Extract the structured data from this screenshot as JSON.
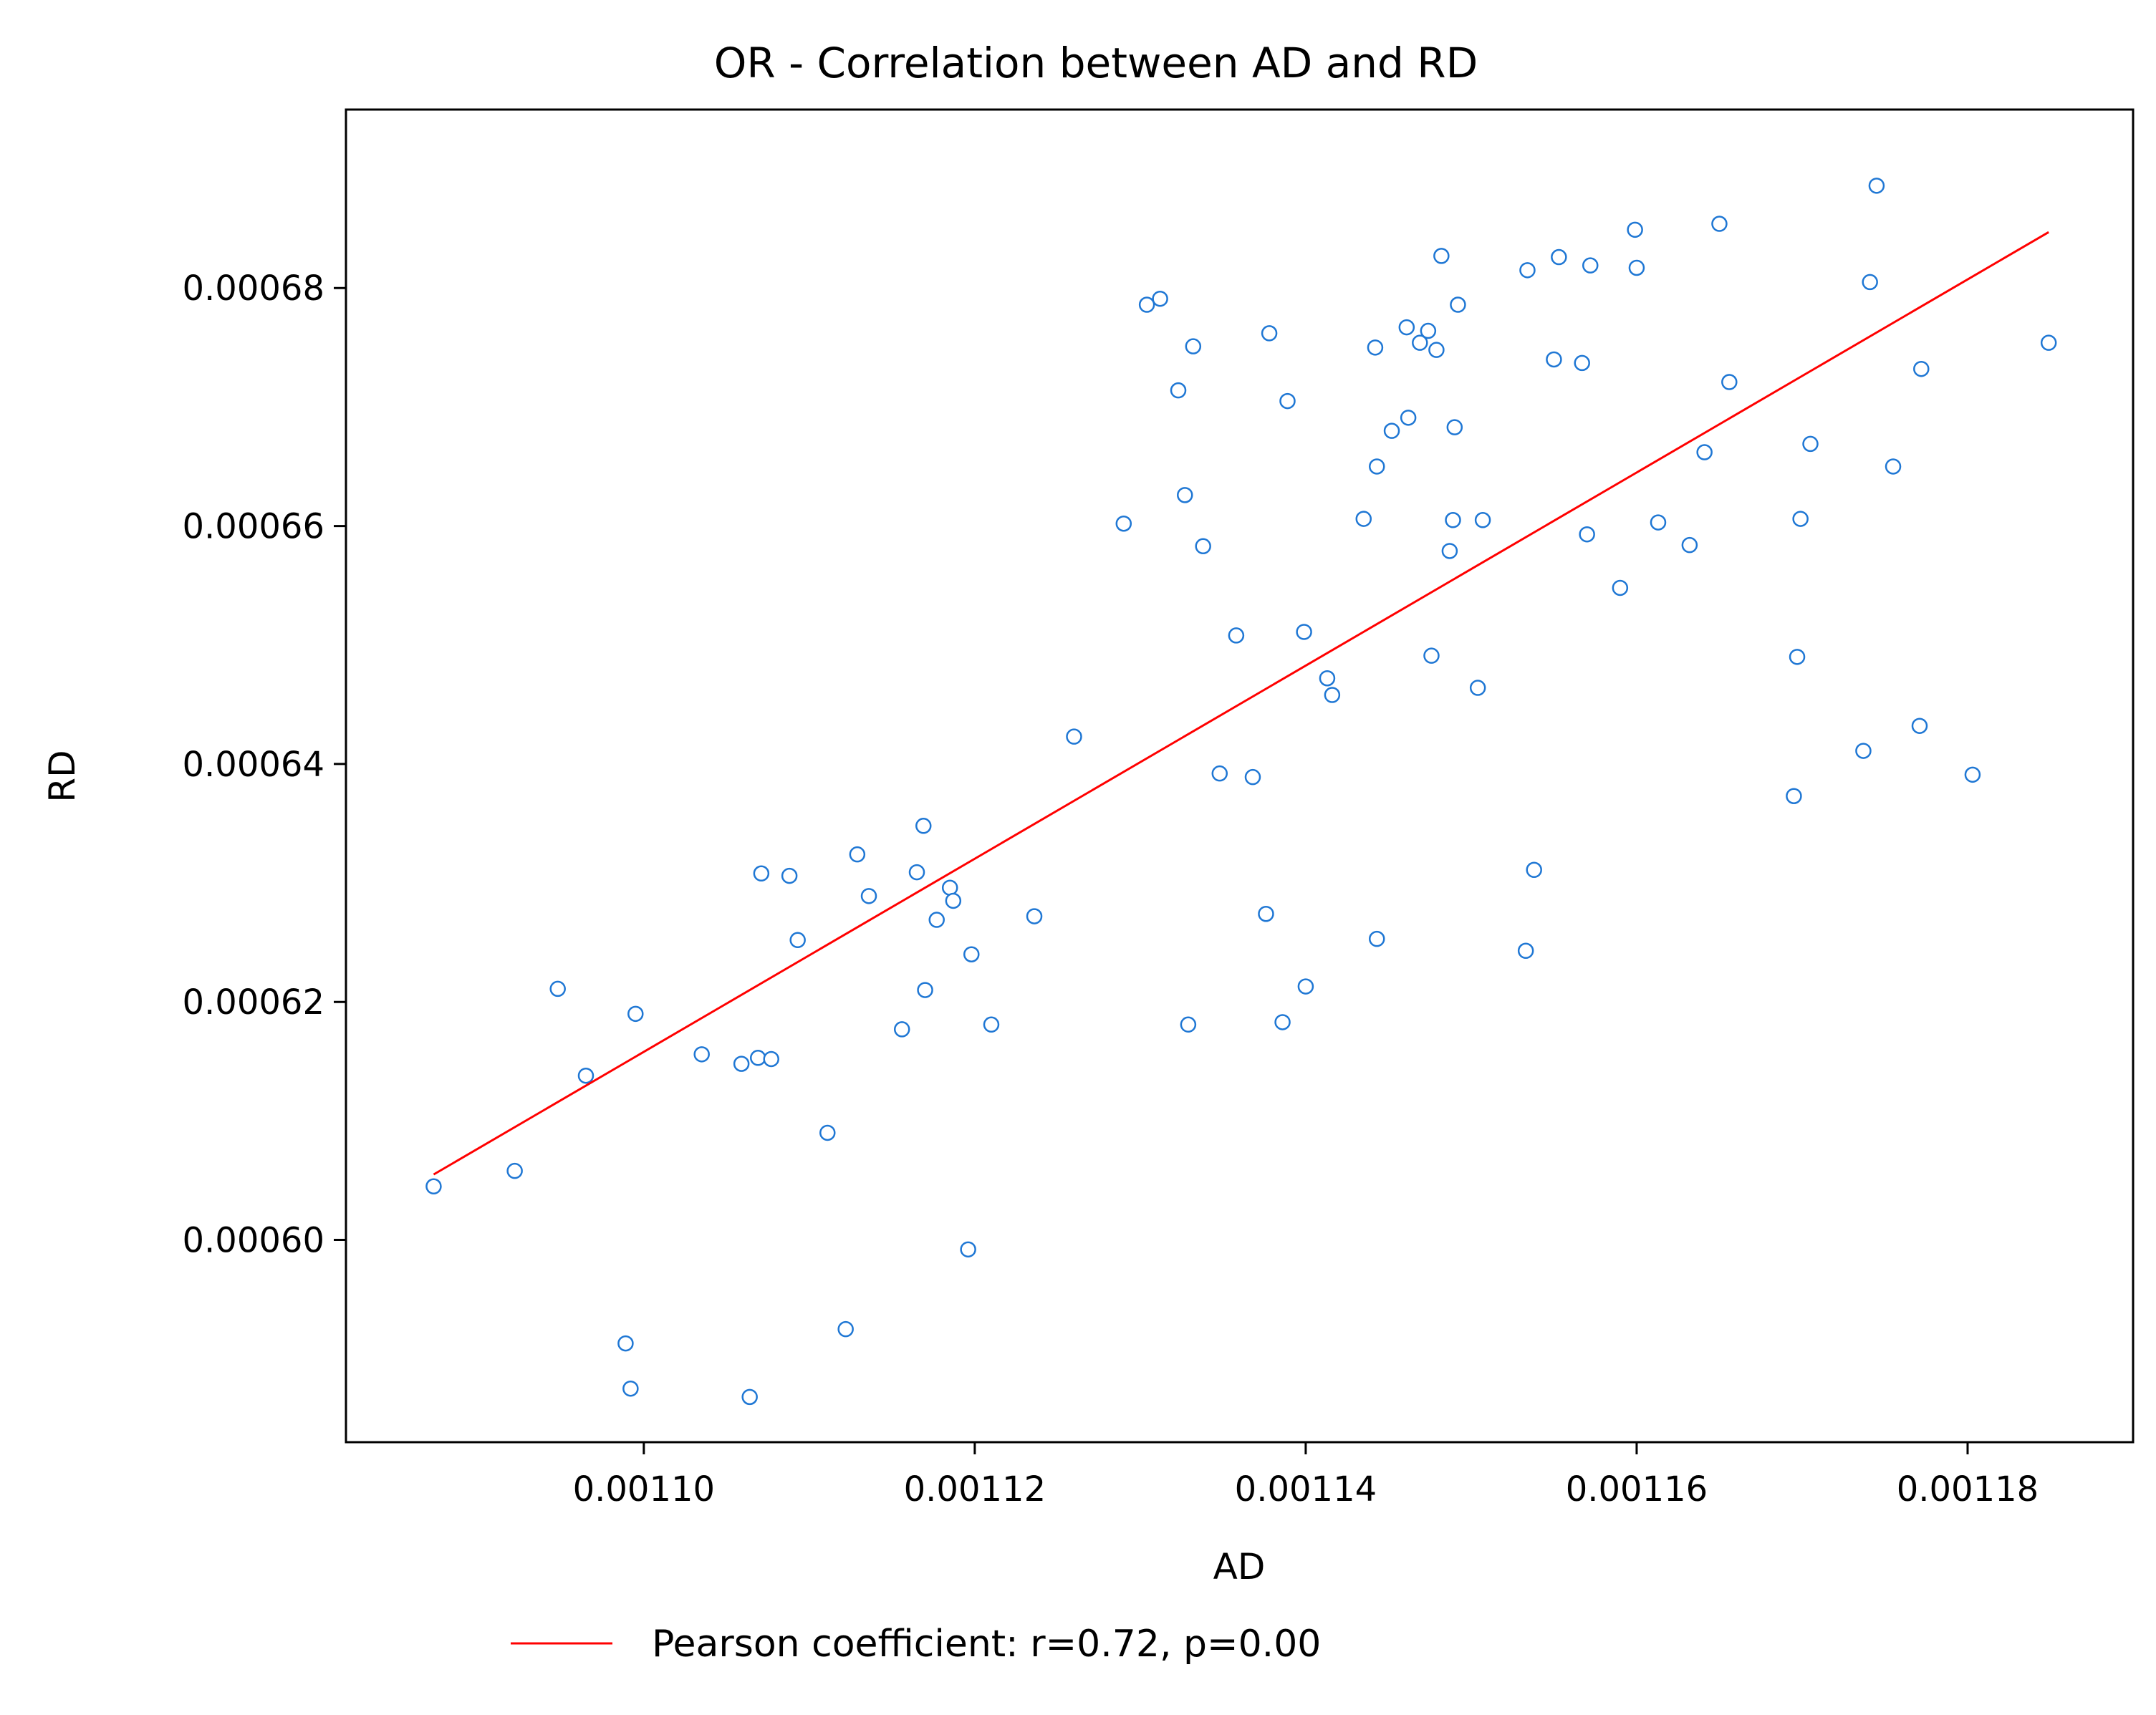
{
  "chart_data": {
    "type": "scatter",
    "title": "OR - Correlation between AD and RD",
    "xlabel": "AD",
    "ylabel": "RD",
    "xlim": [
      0.001082,
      0.00119
    ],
    "ylim": [
      0.000583,
      0.000695
    ],
    "xticks": [
      0.0011,
      0.00112,
      0.00114,
      0.00116,
      0.00118
    ],
    "xtick_labels": [
      "0.00110",
      "0.00112",
      "0.00114",
      "0.00116",
      "0.00118"
    ],
    "yticks": [
      0.0006,
      0.00062,
      0.00064,
      0.00066,
      0.00068
    ],
    "ytick_labels": [
      "0.00060",
      "0.00062",
      "0.00064",
      "0.00066",
      "0.00068"
    ],
    "grid": false,
    "legend": {
      "placement": "below-plot",
      "entries": [
        "Pearson coefficient: r=0.72, p=0.00"
      ]
    },
    "colors": {
      "points": "#1f77d4",
      "fit_line": "#ff0000"
    },
    "series": [
      {
        "kind": "scatter",
        "points": [
          [
            0.0010873,
            0.0006045
          ],
          [
            0.0010922,
            0.0006058
          ],
          [
            0.0010948,
            0.0006211
          ],
          [
            0.0010965,
            0.0006138
          ],
          [
            0.0010989,
            0.0005913
          ],
          [
            0.0010992,
            0.0005875
          ],
          [
            0.0010995,
            0.000619
          ],
          [
            0.0011035,
            0.0006156
          ],
          [
            0.0011059,
            0.0006148
          ],
          [
            0.0011064,
            0.0005868
          ],
          [
            0.0011069,
            0.0006153
          ],
          [
            0.0011071,
            0.0006308
          ],
          [
            0.0011077,
            0.0006152
          ],
          [
            0.0011088,
            0.0006306
          ],
          [
            0.0011093,
            0.0006252
          ],
          [
            0.0011111,
            0.000609
          ],
          [
            0.0011122,
            0.0005925
          ],
          [
            0.0011129,
            0.0006324
          ],
          [
            0.0011136,
            0.0006289
          ],
          [
            0.0011156,
            0.0006177
          ],
          [
            0.0011165,
            0.0006309
          ],
          [
            0.0011169,
            0.0006348
          ],
          [
            0.001117,
            0.000621
          ],
          [
            0.0011177,
            0.0006269
          ],
          [
            0.0011185,
            0.0006296
          ],
          [
            0.0011187,
            0.0006285
          ],
          [
            0.0011196,
            0.0005992
          ],
          [
            0.0011198,
            0.000624
          ],
          [
            0.001121,
            0.0006181
          ],
          [
            0.0011236,
            0.0006272
          ],
          [
            0.001126,
            0.0006423
          ],
          [
            0.001129,
            0.0006602
          ],
          [
            0.0011304,
            0.0006786
          ],
          [
            0.0011312,
            0.0006791
          ],
          [
            0.0011323,
            0.0006714
          ],
          [
            0.0011327,
            0.0006626
          ],
          [
            0.0011329,
            0.0006181
          ],
          [
            0.0011332,
            0.0006751
          ],
          [
            0.0011338,
            0.0006583
          ],
          [
            0.0011348,
            0.0006392
          ],
          [
            0.0011358,
            0.0006508
          ],
          [
            0.0011368,
            0.0006389
          ],
          [
            0.0011376,
            0.0006274
          ],
          [
            0.0011378,
            0.0006762
          ],
          [
            0.0011386,
            0.0006183
          ],
          [
            0.0011389,
            0.0006705
          ],
          [
            0.0011399,
            0.0006511
          ],
          [
            0.00114,
            0.0006213
          ],
          [
            0.0011413,
            0.0006472
          ],
          [
            0.0011416,
            0.0006458
          ],
          [
            0.0011435,
            0.0006606
          ],
          [
            0.0011442,
            0.000675
          ],
          [
            0.0011443,
            0.000665
          ],
          [
            0.0011443,
            0.0006253
          ],
          [
            0.0011452,
            0.000668
          ],
          [
            0.0011461,
            0.0006767
          ],
          [
            0.0011462,
            0.0006691
          ],
          [
            0.0011469,
            0.0006754
          ],
          [
            0.0011474,
            0.0006764
          ],
          [
            0.0011476,
            0.0006491
          ],
          [
            0.0011479,
            0.0006748
          ],
          [
            0.0011482,
            0.0006827
          ],
          [
            0.0011487,
            0.0006579
          ],
          [
            0.0011489,
            0.0006605
          ],
          [
            0.001149,
            0.0006683
          ],
          [
            0.0011492,
            0.0006786
          ],
          [
            0.0011504,
            0.0006464
          ],
          [
            0.0011507,
            0.0006605
          ],
          [
            0.0011533,
            0.0006243
          ],
          [
            0.0011534,
            0.0006815
          ],
          [
            0.0011538,
            0.0006311
          ],
          [
            0.001155,
            0.000674
          ],
          [
            0.0011553,
            0.0006826
          ],
          [
            0.0011567,
            0.0006737
          ],
          [
            0.001157,
            0.0006593
          ],
          [
            0.0011572,
            0.0006819
          ],
          [
            0.001159,
            0.0006548
          ],
          [
            0.0011599,
            0.0006849
          ],
          [
            0.00116,
            0.0006817
          ],
          [
            0.0011613,
            0.0006603
          ],
          [
            0.0011632,
            0.0006584
          ],
          [
            0.0011641,
            0.0006662
          ],
          [
            0.001165,
            0.0006854
          ],
          [
            0.0011656,
            0.0006721
          ],
          [
            0.0011695,
            0.0006373
          ],
          [
            0.0011697,
            0.000649
          ],
          [
            0.0011699,
            0.0006606
          ],
          [
            0.0011705,
            0.0006669
          ],
          [
            0.0011737,
            0.0006411
          ],
          [
            0.0011741,
            0.0006805
          ],
          [
            0.0011745,
            0.0006886
          ],
          [
            0.0011755,
            0.000665
          ],
          [
            0.0011771,
            0.0006432
          ],
          [
            0.0011772,
            0.0006732
          ],
          [
            0.0011803,
            0.0006391
          ],
          [
            0.0011849,
            0.0006754
          ]
        ]
      },
      {
        "kind": "line",
        "name": "Pearson coefficient: r=0.72, p=0.00",
        "points": [
          [
            0.0010873,
            0.0006055
          ],
          [
            0.0011849,
            0.0006847
          ]
        ]
      }
    ]
  }
}
